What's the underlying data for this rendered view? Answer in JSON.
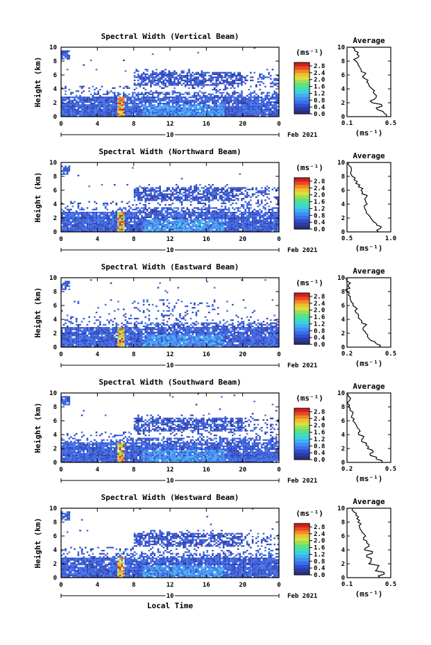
{
  "figure": {
    "x_title": "Local Time",
    "date_label": "Feb 2021",
    "day_label": "10"
  },
  "chart_data": [
    {
      "type": "heatmap",
      "title": "Spectral Width (Vertical Beam)",
      "xlabel": "",
      "ylabel": "Height (km)",
      "xlim": [
        0,
        24
      ],
      "ylim": [
        0,
        10
      ],
      "x_ticks": [
        "0",
        "4",
        "8",
        "12",
        "16",
        "20",
        "0"
      ],
      "y_ticks": [
        "0",
        "2",
        "4",
        "6",
        "8",
        "10"
      ],
      "colorbar": {
        "unit": "(ms⁻¹)",
        "ticks": [
          "0.0",
          "0.4",
          "0.8",
          "1.2",
          "1.6",
          "2.0",
          "2.4",
          "2.8"
        ],
        "range": [
          0,
          3.0
        ]
      },
      "avg_title": "Average",
      "avg_xlabel": "(ms⁻¹)",
      "avg_xticks": [
        "0.1",
        "0.5"
      ],
      "avg_xlim": [
        0.1,
        0.5
      ],
      "avg_yticks": [
        "0",
        "2",
        "4",
        "6",
        "8",
        "10"
      ],
      "cloud_top": 6.5,
      "avg_profile": [
        0.46,
        0.44,
        0.38,
        0.42,
        0.33,
        0.35,
        0.37,
        0.34,
        0.33,
        0.3,
        0.28,
        0.26,
        0.26,
        0.23,
        0.22,
        0.2,
        0.18,
        0.2,
        0.19,
        0.17,
        0.15
      ]
    },
    {
      "type": "heatmap",
      "title": "Spectral Width (Northward Beam)",
      "xlabel": "",
      "ylabel": "Height (km)",
      "xlim": [
        0,
        24
      ],
      "ylim": [
        0,
        10
      ],
      "x_ticks": [
        "0",
        "4",
        "8",
        "12",
        "16",
        "20",
        "0"
      ],
      "y_ticks": [
        "0",
        "2",
        "4",
        "6",
        "8",
        "10"
      ],
      "colorbar": {
        "unit": "(ms⁻¹)",
        "ticks": [
          "0.0",
          "0.4",
          "0.8",
          "1.2",
          "1.6",
          "2.0",
          "2.4",
          "2.8"
        ],
        "range": [
          0,
          3.0
        ]
      },
      "avg_title": "Average",
      "avg_xlabel": "(ms⁻¹)",
      "avg_xticks": [
        "0.5",
        "1.0"
      ],
      "avg_xlim": [
        0.5,
        1.0
      ],
      "avg_yticks": [
        "0",
        "2",
        "4",
        "6",
        "8",
        "10"
      ],
      "cloud_top": 6.5,
      "avg_profile": [
        0.86,
        0.88,
        0.84,
        0.8,
        0.77,
        0.74,
        0.72,
        0.7,
        0.73,
        0.71,
        0.72,
        0.67,
        0.66,
        0.63,
        0.6,
        0.58,
        0.56,
        0.54,
        0.55,
        0.53,
        0.52
      ]
    },
    {
      "type": "heatmap",
      "title": "Spectral Width (Eastward Beam)",
      "xlabel": "",
      "ylabel": "Height (km)",
      "xlim": [
        0,
        24
      ],
      "ylim": [
        0,
        10
      ],
      "x_ticks": [
        "0",
        "4",
        "8",
        "12",
        "16",
        "20",
        "0"
      ],
      "y_ticks": [
        "0",
        "2",
        "4",
        "6",
        "8",
        "10"
      ],
      "colorbar": {
        "unit": "(ms⁻¹)",
        "ticks": [
          "0.0",
          "0.4",
          "0.8",
          "1.2",
          "1.6",
          "2.0",
          "2.4",
          "2.8"
        ],
        "range": [
          0,
          3.0
        ]
      },
      "avg_title": "Average",
      "avg_xlabel": "(ms⁻¹)",
      "avg_xticks": [
        "0.2",
        "0.5"
      ],
      "avg_xlim": [
        0.2,
        0.5
      ],
      "avg_yticks": [
        "0",
        "2",
        "4",
        "6",
        "8",
        "10"
      ],
      "cloud_top": 5.0,
      "avg_profile": [
        0.42,
        0.4,
        0.36,
        0.34,
        0.33,
        0.31,
        0.32,
        0.3,
        0.29,
        0.28,
        0.26,
        0.27,
        0.24,
        0.23,
        0.22,
        0.21,
        0.2,
        0.22,
        0.21,
        0.2,
        0.19
      ]
    },
    {
      "type": "heatmap",
      "title": "Spectral Width (Southward Beam)",
      "xlabel": "",
      "ylabel": "Height (km)",
      "xlim": [
        0,
        24
      ],
      "ylim": [
        0,
        10
      ],
      "x_ticks": [
        "0",
        "4",
        "8",
        "12",
        "16",
        "20",
        "0"
      ],
      "y_ticks": [
        "0",
        "2",
        "4",
        "6",
        "8",
        "10"
      ],
      "colorbar": {
        "unit": "(ms⁻¹)",
        "ticks": [
          "0.0",
          "0.4",
          "0.8",
          "1.2",
          "1.6",
          "2.0",
          "2.4",
          "2.8"
        ],
        "range": [
          0,
          3.0
        ]
      },
      "avg_title": "Average",
      "avg_xlabel": "(ms⁻¹)",
      "avg_xticks": [
        "0.2",
        "0.5"
      ],
      "avg_xlim": [
        0.2,
        0.5
      ],
      "avg_yticks": [
        "0",
        "2",
        "4",
        "6",
        "8",
        "10"
      ],
      "cloud_top": 6.5,
      "avg_profile": [
        0.44,
        0.4,
        0.36,
        0.38,
        0.34,
        0.33,
        0.3,
        0.31,
        0.28,
        0.29,
        0.27,
        0.26,
        0.24,
        0.23,
        0.24,
        0.22,
        0.21,
        0.2,
        0.22,
        0.21,
        0.2
      ]
    },
    {
      "type": "heatmap",
      "title": "Spectral Width (Westward Beam)",
      "xlabel": "Local Time",
      "ylabel": "Height (km)",
      "xlim": [
        0,
        24
      ],
      "ylim": [
        0,
        10
      ],
      "x_ticks": [
        "0",
        "4",
        "8",
        "12",
        "16",
        "20",
        "0"
      ],
      "y_ticks": [
        "0",
        "2",
        "4",
        "6",
        "8",
        "10"
      ],
      "colorbar": {
        "unit": "(ms⁻¹)",
        "ticks": [
          "0.0",
          "0.4",
          "0.8",
          "1.2",
          "1.6",
          "2.0",
          "2.4",
          "2.8"
        ],
        "range": [
          0,
          3.0
        ]
      },
      "avg_title": "Average",
      "avg_xlabel": "(ms⁻¹)",
      "avg_xticks": [
        "0.1",
        "0.5"
      ],
      "avg_xlim": [
        0.1,
        0.5
      ],
      "avg_yticks": [
        "0",
        "2",
        "4",
        "6",
        "8",
        "10"
      ],
      "cloud_top": 6.5,
      "avg_profile": [
        0.4,
        0.44,
        0.36,
        0.38,
        0.3,
        0.32,
        0.28,
        0.33,
        0.26,
        0.3,
        0.28,
        0.25,
        0.27,
        0.24,
        0.22,
        0.21,
        0.2,
        0.19,
        0.18,
        0.16,
        0.15
      ]
    }
  ]
}
